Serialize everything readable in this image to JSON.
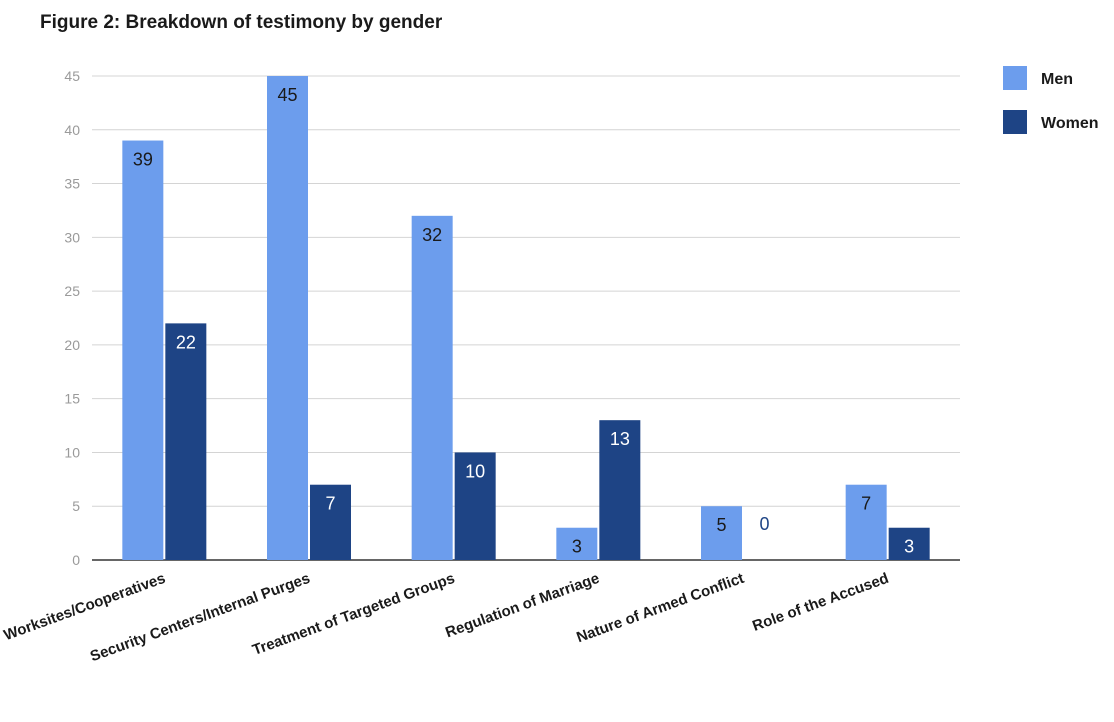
{
  "chart_data": {
    "type": "bar",
    "title": "Figure 2: Breakdown of testimony by gender",
    "categories": [
      "Worksites/Cooperatives",
      "Security Centers/Internal Purges",
      "Treatment of Targeted Groups",
      "Regulation of Marriage",
      "Nature of Armed Conflict",
      "Role of the Accused"
    ],
    "series": [
      {
        "name": "Men",
        "color": "#6c9ded",
        "values": [
          39,
          45,
          32,
          3,
          5,
          7
        ]
      },
      {
        "name": "Women",
        "color": "#1e4485",
        "values": [
          22,
          7,
          10,
          13,
          0,
          3
        ]
      }
    ],
    "ylim": [
      0,
      45
    ],
    "yticks": [
      0,
      5,
      10,
      15,
      20,
      25,
      30,
      35,
      40,
      45
    ],
    "grid": true,
    "legend": "right"
  }
}
